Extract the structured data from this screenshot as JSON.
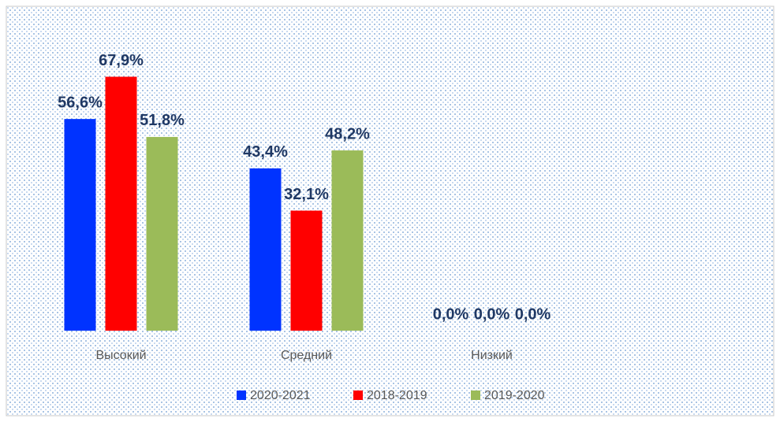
{
  "chart_data": {
    "type": "bar",
    "categories": [
      "Высокий",
      "Средний",
      "Низкий"
    ],
    "series": [
      {
        "name": "2020-2021",
        "color": "#0033ff",
        "values": [
          56.6,
          43.4,
          0
        ],
        "value_labels": [
          "56,6%",
          "43,4%",
          "0,0%"
        ]
      },
      {
        "name": "2018-2019",
        "color": "#ff0000",
        "values": [
          67.9,
          32.1,
          0
        ],
        "value_labels": [
          "67,9%",
          "32,1%",
          "0,0%"
        ]
      },
      {
        "name": "2019-2020",
        "color": "#9bbb59",
        "values": [
          51.8,
          48.2,
          0
        ],
        "value_labels": [
          "51,8%",
          "48,2%",
          "0,0%"
        ]
      }
    ],
    "ylim": [
      0,
      80
    ],
    "legend": "bottom"
  }
}
